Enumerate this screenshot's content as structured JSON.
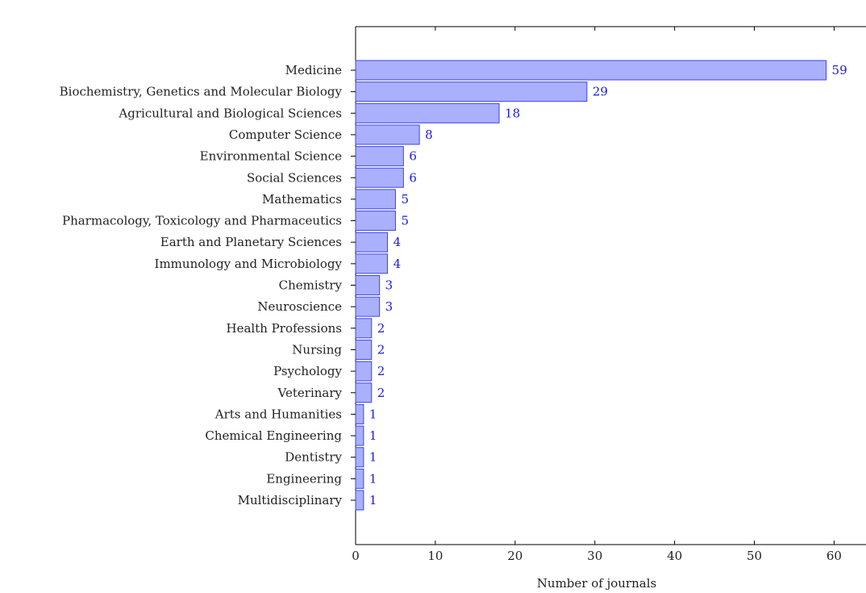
{
  "chart_data": {
    "type": "bar",
    "orientation": "horizontal",
    "categories": [
      "Medicine",
      "Biochemistry, Genetics and Molecular Biology",
      "Agricultural and Biological Sciences",
      "Computer Science",
      "Environmental Science",
      "Social Sciences",
      "Mathematics",
      "Pharmacology, Toxicology and Pharmaceutics",
      "Earth and Planetary Sciences",
      "Immunology and Microbiology",
      "Chemistry",
      "Neuroscience",
      "Health Professions",
      "Nursing",
      "Psychology",
      "Veterinary",
      "Arts and Humanities",
      "Chemical Engineering",
      "Dentistry",
      "Engineering",
      "Multidisciplinary"
    ],
    "values": [
      59,
      29,
      18,
      8,
      6,
      6,
      5,
      5,
      4,
      4,
      3,
      3,
      2,
      2,
      2,
      2,
      1,
      1,
      1,
      1,
      1
    ],
    "xlabel": "Number of journals",
    "ylabel": "",
    "xlim": [
      0,
      64
    ],
    "xticks": [
      0,
      10,
      20,
      30,
      40,
      50,
      60
    ],
    "grid": false,
    "data_labels": true,
    "colors": {
      "bar_fill": "#aab0fb",
      "bar_stroke": "#3a44f0",
      "value_label": "#1a1adf",
      "axis": "#000000"
    }
  }
}
